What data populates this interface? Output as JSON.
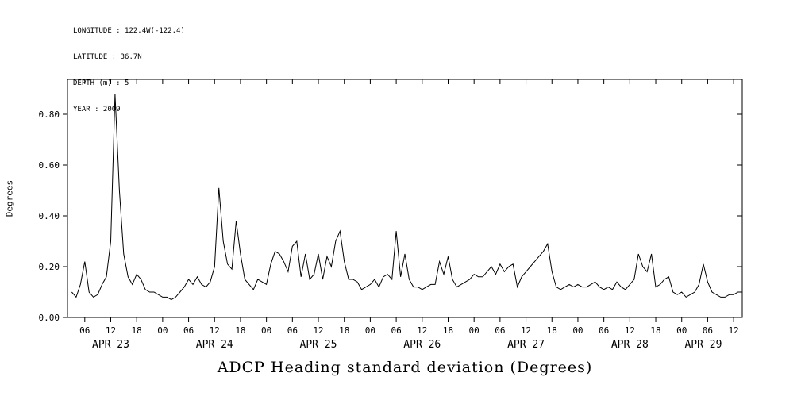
{
  "page": {
    "background_color": "#ffffff",
    "foreground_color": "#000000"
  },
  "header_info": {
    "longitude": "LONGITUDE : 122.4W(-122.4)",
    "latitude": "LATITUDE : 36.7N",
    "depth": "DEPTH (m) : 5",
    "year": "YEAR : 2009"
  },
  "chart_data": {
    "type": "line",
    "title": "ADCP Heading standard deviation (Degrees)",
    "ylabel": "Degrees",
    "xlabel": "",
    "grid": false,
    "legend": "none",
    "line_color": "#000000",
    "ylim": [
      0.0,
      0.9375
    ],
    "ytick_values": [
      0.0,
      0.2,
      0.4,
      0.6,
      0.8
    ],
    "ytick_labels": [
      "0.00",
      "0.20",
      "0.40",
      "0.60",
      "0.80"
    ],
    "x_unit": "hours since APR 23 00:00 (2009)",
    "xlim": [
      2,
      158
    ],
    "xtick_hours": [
      6,
      12,
      18,
      24,
      30,
      36,
      42,
      48,
      54,
      60,
      66,
      72,
      78,
      84,
      90,
      96,
      102,
      108,
      114,
      120,
      126,
      132,
      138,
      144,
      150,
      156
    ],
    "xtick_labels": [
      "06",
      "12",
      "18",
      "00",
      "06",
      "12",
      "18",
      "00",
      "06",
      "12",
      "18",
      "00",
      "06",
      "12",
      "18",
      "00",
      "06",
      "12",
      "18",
      "00",
      "06",
      "12",
      "18",
      "00",
      "06",
      "12"
    ],
    "day_labels": [
      {
        "label": "APR 23",
        "hour": 12
      },
      {
        "label": "APR 24",
        "hour": 36
      },
      {
        "label": "APR 25",
        "hour": 60
      },
      {
        "label": "APR 26",
        "hour": 84
      },
      {
        "label": "APR 27",
        "hour": 108
      },
      {
        "label": "APR 28",
        "hour": 132
      },
      {
        "label": "APR 29",
        "hour": 149
      }
    ],
    "series": [
      {
        "name": "ADCP heading standard deviation",
        "x": [
          3,
          4,
          5,
          6,
          7,
          8,
          9,
          10,
          11,
          12,
          13,
          14,
          15,
          16,
          17,
          18,
          19,
          20,
          21,
          22,
          23,
          24,
          25,
          26,
          27,
          28,
          29,
          30,
          31,
          32,
          33,
          34,
          35,
          36,
          37,
          38,
          39,
          40,
          41,
          42,
          43,
          44,
          45,
          46,
          47,
          48,
          49,
          50,
          51,
          52,
          53,
          54,
          55,
          56,
          57,
          58,
          59,
          60,
          61,
          62,
          63,
          64,
          65,
          66,
          67,
          68,
          69,
          70,
          71,
          72,
          73,
          74,
          75,
          76,
          77,
          78,
          79,
          80,
          81,
          82,
          83,
          84,
          85,
          86,
          87,
          88,
          89,
          90,
          91,
          92,
          93,
          94,
          95,
          96,
          97,
          98,
          99,
          100,
          101,
          102,
          103,
          104,
          105,
          106,
          107,
          108,
          109,
          110,
          111,
          112,
          113,
          114,
          115,
          116,
          117,
          118,
          119,
          120,
          121,
          122,
          123,
          124,
          125,
          126,
          127,
          128,
          129,
          130,
          131,
          132,
          133,
          134,
          135,
          136,
          137,
          138,
          139,
          140,
          141,
          142,
          143,
          144,
          145,
          146,
          147,
          148,
          149,
          150,
          151,
          152,
          153,
          154,
          155,
          156,
          157,
          158
        ],
        "y": [
          0.1,
          0.08,
          0.13,
          0.22,
          0.1,
          0.08,
          0.09,
          0.13,
          0.16,
          0.3,
          0.88,
          0.5,
          0.25,
          0.16,
          0.13,
          0.17,
          0.15,
          0.11,
          0.1,
          0.1,
          0.09,
          0.08,
          0.08,
          0.07,
          0.08,
          0.1,
          0.12,
          0.15,
          0.13,
          0.16,
          0.13,
          0.12,
          0.14,
          0.2,
          0.51,
          0.3,
          0.21,
          0.19,
          0.38,
          0.25,
          0.15,
          0.13,
          0.11,
          0.15,
          0.14,
          0.13,
          0.21,
          0.26,
          0.25,
          0.22,
          0.18,
          0.28,
          0.3,
          0.16,
          0.25,
          0.15,
          0.17,
          0.25,
          0.15,
          0.24,
          0.2,
          0.3,
          0.34,
          0.22,
          0.15,
          0.15,
          0.14,
          0.11,
          0.12,
          0.13,
          0.15,
          0.12,
          0.16,
          0.17,
          0.15,
          0.34,
          0.16,
          0.25,
          0.15,
          0.12,
          0.12,
          0.11,
          0.12,
          0.13,
          0.13,
          0.22,
          0.17,
          0.24,
          0.15,
          0.12,
          0.13,
          0.14,
          0.15,
          0.17,
          0.16,
          0.16,
          0.18,
          0.2,
          0.17,
          0.21,
          0.18,
          0.2,
          0.21,
          0.12,
          0.16,
          0.18,
          0.2,
          0.22,
          0.24,
          0.26,
          0.29,
          0.18,
          0.12,
          0.11,
          0.12,
          0.13,
          0.12,
          0.13,
          0.12,
          0.12,
          0.13,
          0.14,
          0.12,
          0.11,
          0.12,
          0.11,
          0.14,
          0.12,
          0.11,
          0.13,
          0.15,
          0.25,
          0.2,
          0.18,
          0.25,
          0.12,
          0.13,
          0.15,
          0.16,
          0.1,
          0.09,
          0.1,
          0.08,
          0.09,
          0.1,
          0.13,
          0.21,
          0.14,
          0.1,
          0.09,
          0.08,
          0.08,
          0.09,
          0.09,
          0.1,
          0.1
        ]
      }
    ]
  }
}
